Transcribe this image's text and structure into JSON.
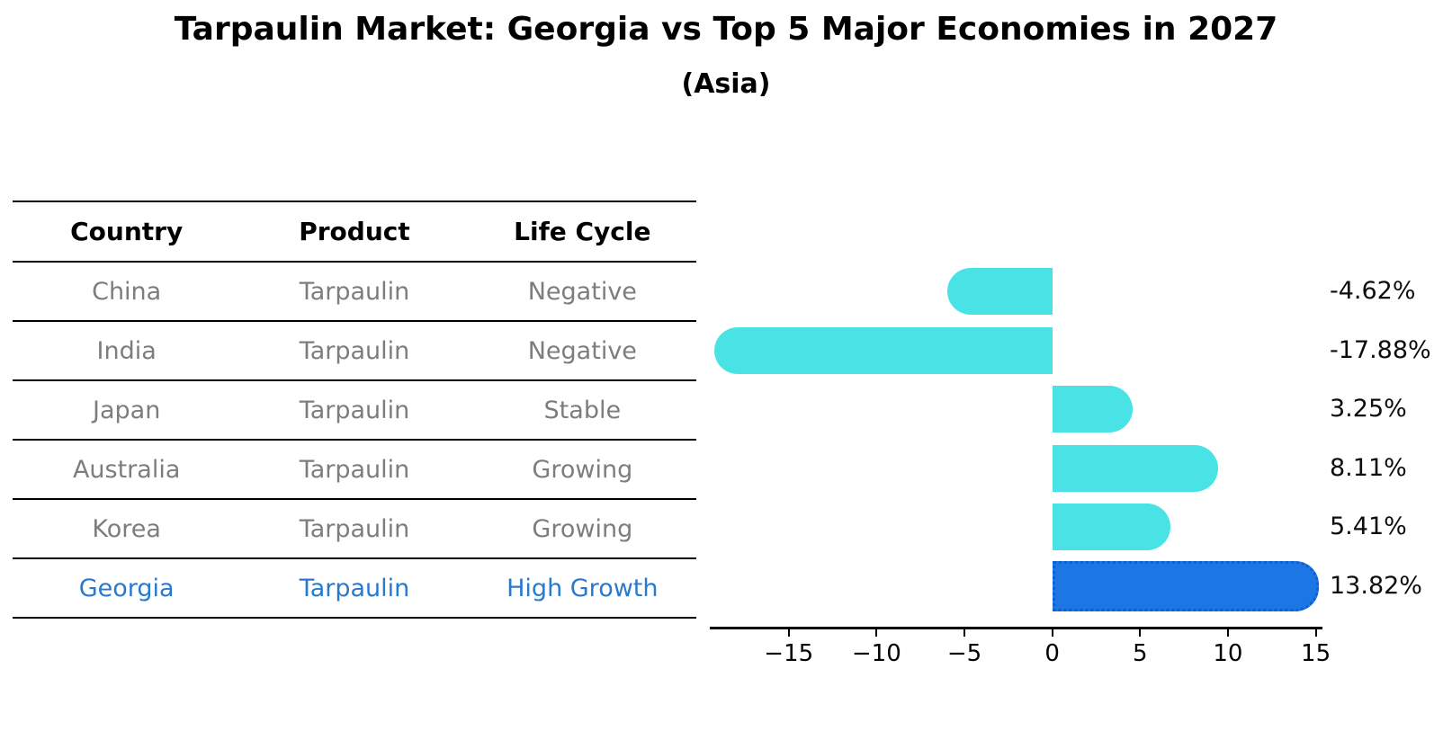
{
  "title": "Tarpaulin Market: Georgia vs Top 5 Major Economies in 2027",
  "subtitle": "(Asia)",
  "table": {
    "headers": [
      "Country",
      "Product",
      "Life Cycle"
    ],
    "rows": [
      {
        "country": "China",
        "product": "Tarpaulin",
        "life_cycle": "Negative",
        "highlight": false
      },
      {
        "country": "India",
        "product": "Tarpaulin",
        "life_cycle": "Negative",
        "highlight": false
      },
      {
        "country": "Japan",
        "product": "Tarpaulin",
        "life_cycle": "Stable",
        "highlight": false
      },
      {
        "country": "Australia",
        "product": "Tarpaulin",
        "life_cycle": "Growing",
        "highlight": false
      },
      {
        "country": "Korea",
        "product": "Tarpaulin",
        "life_cycle": "Growing",
        "highlight": false
      },
      {
        "country": "Georgia",
        "product": "Tarpaulin",
        "life_cycle": "High Growth",
        "highlight": true
      }
    ]
  },
  "chart_data": {
    "type": "bar",
    "orientation": "horizontal",
    "title": "Tarpaulin Market: Georgia vs Top 5 Major Economies in 2027",
    "subtitle": "(Asia)",
    "categories": [
      "China",
      "India",
      "Japan",
      "Australia",
      "Korea",
      "Georgia"
    ],
    "values": [
      -4.62,
      -17.88,
      3.25,
      8.11,
      5.41,
      13.82
    ],
    "value_labels": [
      "-4.62%",
      "-17.88%",
      "3.25%",
      "8.11%",
      "5.41%",
      "13.82%"
    ],
    "xticks": [
      -15,
      -10,
      -5,
      0,
      5,
      10,
      15
    ],
    "xtick_labels": [
      "−15",
      "−10",
      "−5",
      "0",
      "5",
      "10",
      "15"
    ],
    "xlim": [
      -19.49,
      15.38
    ],
    "grid": false,
    "legend": null,
    "highlight_index": 5,
    "bar_color": "#49e3e6",
    "highlight_bar_color": "#1c76e4",
    "highlight_border_color": "#0e5fd2",
    "highlight_text_color": "#2979cf"
  }
}
